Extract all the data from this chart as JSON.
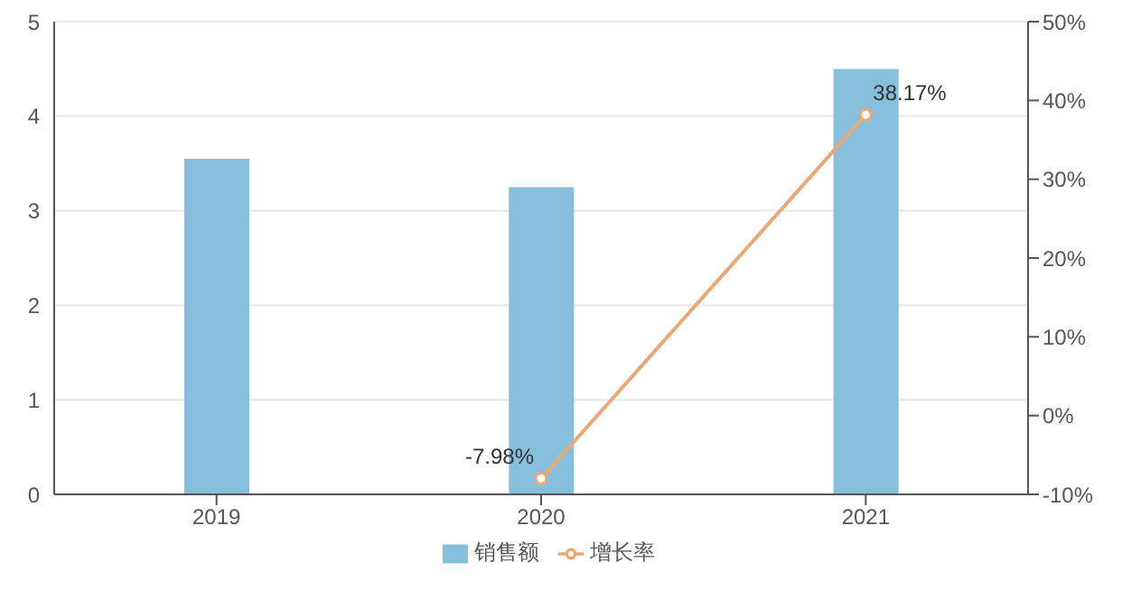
{
  "chart_data": {
    "type": "bar",
    "categories": [
      "2019",
      "2020",
      "2021"
    ],
    "series": [
      {
        "name": "销售额",
        "color": "#87bedb",
        "values": [
          3.55,
          3.25,
          4.5
        ]
      },
      {
        "name": "增长率",
        "type": "line",
        "axis": "y2",
        "color": "#e8a878",
        "values": [
          null,
          -7.98,
          38.17
        ],
        "value_labels": [
          null,
          "-7.98%",
          "38.17%"
        ]
      }
    ],
    "ylim": [
      0,
      5
    ],
    "yticks": [
      0,
      1,
      2,
      3,
      4,
      5
    ],
    "y2lim": [
      -10,
      50
    ],
    "y2ticks": [
      {
        "value": -10,
        "label": "-10%"
      },
      {
        "value": 0,
        "label": "0%"
      },
      {
        "value": 10,
        "label": "10%"
      },
      {
        "value": 20,
        "label": "20%"
      },
      {
        "value": 30,
        "label": "30%"
      },
      {
        "value": 40,
        "label": "40%"
      },
      {
        "value": 50,
        "label": "50%"
      }
    ],
    "grid": "y",
    "legend": "bottom",
    "marker": "circle"
  }
}
